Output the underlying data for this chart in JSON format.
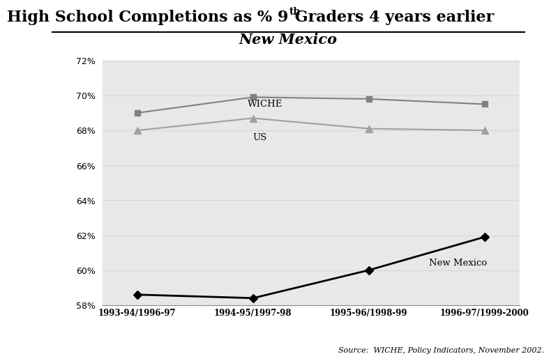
{
  "title_line1a": "High School Completions as % 9",
  "title_line1b": "th",
  "title_line1c": " Graders 4 years earlier",
  "title_line2": "New Mexico",
  "x_labels": [
    "1993-94/1996-97",
    "1994-95/1997-98",
    "1995-96/1998-99",
    "1996-97/1999-2000"
  ],
  "wiche": [
    69.0,
    69.9,
    69.8,
    69.5
  ],
  "us": [
    68.0,
    68.7,
    68.1,
    68.0
  ],
  "new_mexico": [
    58.6,
    58.4,
    60.0,
    61.9
  ],
  "ylim_min": 58,
  "ylim_max": 72,
  "yticks": [
    58,
    60,
    62,
    64,
    66,
    68,
    70,
    72
  ],
  "wiche_color": "#808080",
  "us_color": "#a0a0a0",
  "nm_color": "#000000",
  "source_text": "Source:  WICHE, Policy Indicators, November 2002.",
  "bg_color": "#e8e8e8"
}
